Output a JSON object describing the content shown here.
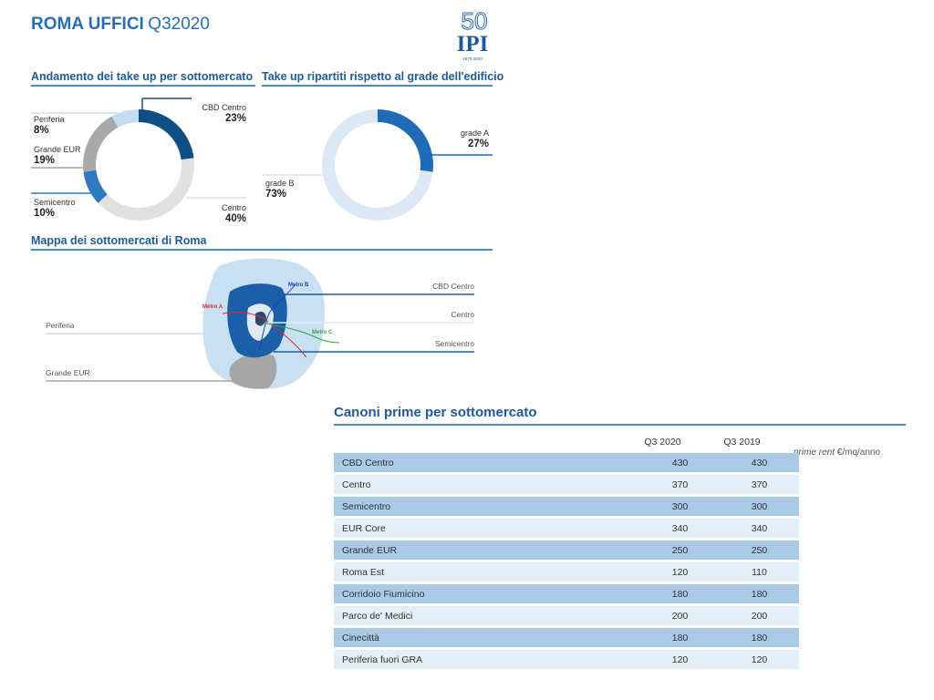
{
  "header": {
    "title_strong": "ROMA UFFICI",
    "title_light": "Q32020",
    "logo_text": "IPI",
    "logo_number": "50",
    "logo_subtext": "1970-2020"
  },
  "takeup_submarket": {
    "title": "Andamento dei take up per sottomercato",
    "slices": [
      {
        "label": "CBD Centro",
        "pct": "23%",
        "value": 23,
        "color": "#0f4f86"
      },
      {
        "label": "Centro",
        "pct": "40%",
        "value": 40,
        "color": "#e1e1e1"
      },
      {
        "label": "Semicentro",
        "pct": "10%",
        "value": 10,
        "color": "#2f78c2"
      },
      {
        "label": "Grande EUR",
        "pct": "19%",
        "value": 19,
        "color": "#a9a9a9"
      },
      {
        "label": "Periferia",
        "pct": "8%",
        "value": 8,
        "color": "#c5ddf0"
      }
    ]
  },
  "takeup_grade": {
    "title": "Take up ripartiti rispetto al grade dell'edificio",
    "slices": [
      {
        "label": "grade A",
        "pct": "27%",
        "value": 27,
        "color": "#1f6bb8"
      },
      {
        "label": "grade B",
        "pct": "73%",
        "value": 73,
        "color": "#dbe8f5"
      }
    ]
  },
  "map": {
    "title": "Mappa dei sottomercati di Roma",
    "labels": {
      "cbd": "CBD Centro",
      "centro": "Centro",
      "semicentro": "Semicentro",
      "periferia": "Periferia",
      "grande_eur": "Grande EUR",
      "metro_a": "Metro A",
      "metro_b": "Metro B",
      "metro_c": "Metro C"
    }
  },
  "rent_table": {
    "title": "Canoni prime per sottomercato",
    "col1": "Q3 2020",
    "col2": "Q3 2019",
    "note_italic": "prime rent",
    "note_rest": " €/mq/anno",
    "rows": [
      {
        "name": "CBD Centro",
        "q3_2020": "430",
        "q3_2019": "430"
      },
      {
        "name": "Centro",
        "q3_2020": "370",
        "q3_2019": "370"
      },
      {
        "name": "Semicentro",
        "q3_2020": "300",
        "q3_2019": "300"
      },
      {
        "name": "EUR Core",
        "q3_2020": "340",
        "q3_2019": "340"
      },
      {
        "name": "Grande EUR",
        "q3_2020": "250",
        "q3_2019": "250"
      },
      {
        "name": "Roma Est",
        "q3_2020": "120",
        "q3_2019": "110"
      },
      {
        "name": "Corridoio Fiumicino",
        "q3_2020": "180",
        "q3_2019": "180"
      },
      {
        "name": "Parco de' Medici",
        "q3_2020": "200",
        "q3_2019": "200"
      },
      {
        "name": "Cinecittà",
        "q3_2020": "180",
        "q3_2019": "180"
      },
      {
        "name": "Periferia fuori GRA",
        "q3_2020": "120",
        "q3_2019": "120"
      }
    ]
  },
  "chart_data": [
    {
      "type": "pie",
      "title": "Andamento dei take up per sottomercato",
      "categories": [
        "CBD Centro",
        "Centro",
        "Semicentro",
        "Grande EUR",
        "Periferia"
      ],
      "values": [
        23,
        40,
        10,
        19,
        8
      ]
    },
    {
      "type": "pie",
      "title": "Take up ripartiti rispetto al grade dell'edificio",
      "categories": [
        "grade A",
        "grade B"
      ],
      "values": [
        27,
        73
      ]
    },
    {
      "type": "table",
      "title": "Canoni prime per sottomercato",
      "columns": [
        "Q3 2020",
        "Q3 2019"
      ],
      "rows": [
        "CBD Centro",
        "Centro",
        "Semicentro",
        "EUR Core",
        "Grande EUR",
        "Roma Est",
        "Corridoio Fiumicino",
        "Parco de' Medici",
        "Cinecittà",
        "Periferia fuori GRA"
      ],
      "values": [
        [
          430,
          430
        ],
        [
          370,
          370
        ],
        [
          300,
          300
        ],
        [
          340,
          340
        ],
        [
          250,
          250
        ],
        [
          120,
          110
        ],
        [
          180,
          180
        ],
        [
          200,
          200
        ],
        [
          180,
          180
        ],
        [
          120,
          120
        ]
      ]
    }
  ]
}
